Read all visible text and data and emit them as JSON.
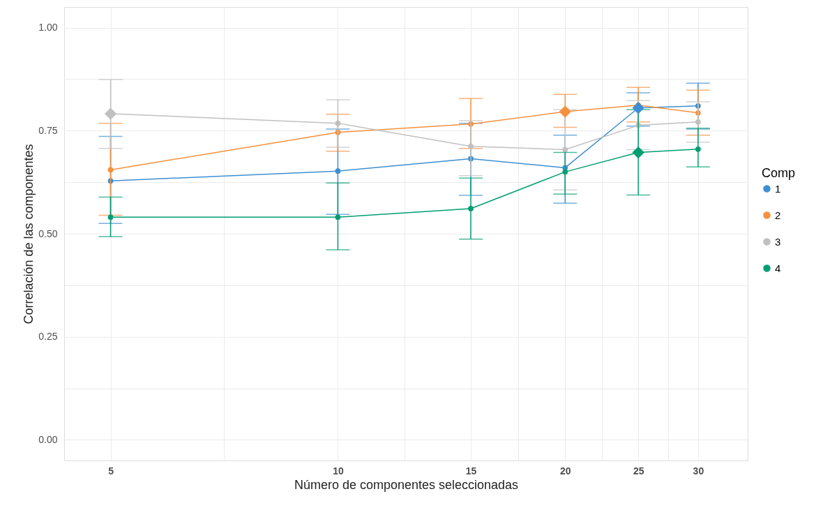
{
  "chart_data": {
    "type": "line",
    "xlabel": "Número de componentes seleccionadas",
    "ylabel": "Correlación de las componentes",
    "legend_title": "Comp",
    "legend": "right",
    "grid": true,
    "marker": "circle",
    "log": "x",
    "xlim": [
      4.34,
      34.9
    ],
    "ylim": [
      -0.05,
      1.05
    ],
    "xticks": [
      5,
      {
        "value": 7.07,
        "label": null
      },
      10,
      {
        "value": 12.25,
        "label": null
      },
      15,
      {
        "value": 17.32,
        "label": null
      },
      20,
      {
        "value": 22.36,
        "label": null
      },
      25,
      {
        "value": 27.39,
        "label": null
      },
      30
    ],
    "yticks": [
      {
        "value": 0,
        "label": "0.00"
      },
      {
        "value": 0.125,
        "label": null
      },
      {
        "value": 0.25,
        "label": "0.25"
      },
      {
        "value": 0.375,
        "label": null
      },
      {
        "value": 0.5,
        "label": "0.50"
      },
      {
        "value": 0.625,
        "label": null
      },
      {
        "value": 0.75,
        "label": "0.75"
      },
      {
        "value": 0.875,
        "label": null
      },
      {
        "value": 1,
        "label": "1.00"
      }
    ],
    "x": [
      5,
      10,
      15,
      20,
      25,
      30
    ],
    "series": [
      {
        "name": "1",
        "color": "#3d8fd1",
        "values": [
          0.628,
          0.652,
          0.682,
          0.66,
          0.805,
          0.81
        ],
        "errors": [
          [
            0.525,
            0.736
          ],
          [
            0.547,
            0.754
          ],
          [
            0.593,
            0.768
          ],
          [
            0.574,
            0.739
          ],
          [
            0.761,
            0.842
          ],
          [
            0.754,
            0.865
          ]
        ]
      },
      {
        "name": "2",
        "color": "#f5913e",
        "values": [
          0.655,
          0.746,
          0.766,
          0.796,
          0.812,
          0.793
        ],
        "errors": [
          [
            0.545,
            0.768
          ],
          [
            0.7,
            0.79
          ],
          [
            0.707,
            0.828
          ],
          [
            0.758,
            0.838
          ],
          [
            0.771,
            0.855
          ],
          [
            0.739,
            0.848
          ]
        ]
      },
      {
        "name": "3",
        "color": "#c0c0c0",
        "values": [
          0.791,
          0.768,
          0.712,
          0.704,
          0.763,
          0.771
        ],
        "errors": [
          [
            0.707,
            0.874
          ],
          [
            0.71,
            0.825
          ],
          [
            0.641,
            0.774
          ],
          [
            0.606,
            0.801
          ],
          [
            0.704,
            0.823
          ],
          [
            0.722,
            0.82
          ]
        ]
      },
      {
        "name": "4",
        "color": "#009e73",
        "values": [
          0.54,
          0.54,
          0.561,
          0.65,
          0.697,
          0.705
        ],
        "errors": [
          [
            0.493,
            0.589
          ],
          [
            0.461,
            0.623
          ],
          [
            0.487,
            0.635
          ],
          [
            0.596,
            0.697
          ],
          [
            0.594,
            0.801
          ],
          [
            0.662,
            0.756
          ]
        ]
      },
      {
        "type": "scatter",
        "marker": "diamond",
        "color": "#c0c0c0",
        "x": [
          5
        ],
        "values": [
          0.791
        ]
      },
      {
        "type": "scatter",
        "marker": "diamond",
        "color": "#f5913e",
        "x": [
          20
        ],
        "values": [
          0.796
        ]
      },
      {
        "type": "scatter",
        "marker": "diamond",
        "color": "#3d8fd1",
        "x": [
          25
        ],
        "values": [
          0.805
        ]
      },
      {
        "type": "scatter",
        "marker": "diamond",
        "color": "#009e73",
        "x": [
          25
        ],
        "values": [
          0.697
        ]
      }
    ]
  }
}
